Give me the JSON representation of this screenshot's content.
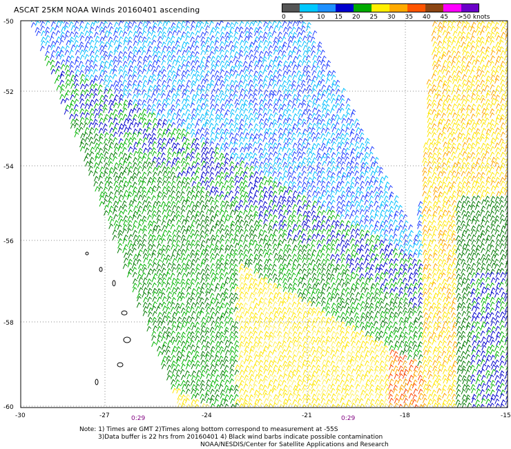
{
  "title": "ASCAT 25KM NOAA Winds 20160401 ascending",
  "colorbar": {
    "labels": [
      "0",
      "5",
      "10",
      "15",
      "20",
      "25",
      "30",
      "35",
      "40",
      "45",
      ">50 knots"
    ],
    "colors": [
      "#555555",
      "#00c8ff",
      "#1e90ff",
      "#0000cd",
      "#00aa00",
      "#ffee00",
      "#ffaa00",
      "#ff5500",
      "#8b4513",
      "#ff00ff",
      "#6a00c8"
    ]
  },
  "axes": {
    "lat_labels": [
      "-50",
      "-52",
      "-54",
      "-56",
      "-58",
      "-60"
    ],
    "lon_labels": [
      "-30",
      "-27",
      "-24",
      "-21",
      "-18",
      "-15"
    ]
  },
  "times": [
    "0:29",
    "0:29"
  ],
  "notes": {
    "line1": "Note: 1) Times are GMT 2)Times along bottom correspond to measurement at -55S",
    "line2": "3)Data buffer is 22 hrs from 20160401 4) Black wind barbs indicate possible contamination",
    "line3": "NOAA/NESDIS/Center for Satellite Applications and Research"
  }
}
